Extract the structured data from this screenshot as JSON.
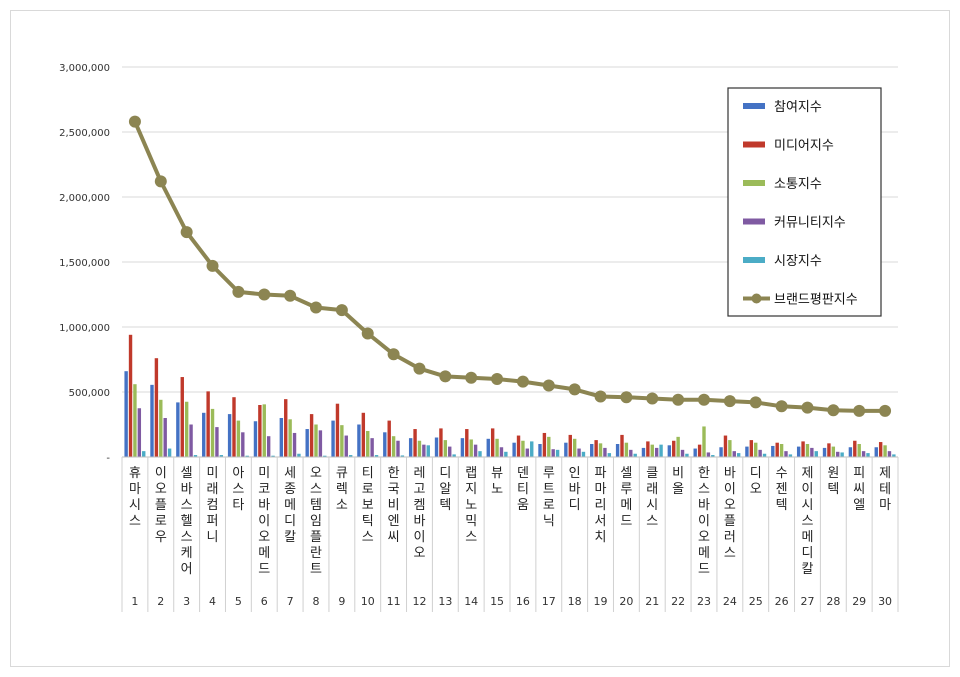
{
  "chart_data": {
    "type": "bar",
    "title": "",
    "xlabel": "",
    "ylabel": "",
    "ylim": [
      0,
      3000000
    ],
    "yticks": [
      0,
      500000,
      1000000,
      1500000,
      2000000,
      2500000,
      3000000
    ],
    "ytick_labels": [
      "-",
      "500,000",
      "1,000,000",
      "1,500,000",
      "2,000,000",
      "2,500,000",
      "3,000,000"
    ],
    "grid": true,
    "legend_position": "top-right",
    "ranks": [
      "1",
      "2",
      "3",
      "4",
      "5",
      "6",
      "7",
      "8",
      "9",
      "10",
      "11",
      "12",
      "13",
      "14",
      "15",
      "16",
      "17",
      "18",
      "19",
      "20",
      "21",
      "22",
      "23",
      "24",
      "25",
      "26",
      "27",
      "28",
      "29",
      "30"
    ],
    "categories": [
      "휴마시스",
      "이오플로우",
      "셀바스헬스케어",
      "미래컴퍼니",
      "아스타",
      "미코바이오메드",
      "세종메디칼",
      "오스템임플란트",
      "큐렉소",
      "티로보틱스",
      "한국비엔씨",
      "레고켐바이오",
      "디알텍",
      "랩지노믹스",
      "뷰노",
      "덴티움",
      "루트로닉",
      "인바디",
      "파마리서치",
      "셀루메드",
      "클래시스",
      "비올",
      "한스바이오메드",
      "바이오플러스",
      "디오",
      "수젠텍",
      "제이시스메디칼",
      "원텍",
      "피씨엘",
      "제테마"
    ],
    "series": [
      {
        "name": "참여지수",
        "color": "#4472c4",
        "values": [
          660000,
          555000,
          420000,
          340000,
          330000,
          275000,
          300000,
          215000,
          280000,
          250000,
          190000,
          145000,
          150000,
          145000,
          140000,
          110000,
          100000,
          110000,
          100000,
          100000,
          70000,
          90000,
          65000,
          75000,
          80000,
          85000,
          80000,
          70000,
          75000,
          75000
        ]
      },
      {
        "name": "미디어지수",
        "color": "#c0392b",
        "values": [
          940000,
          760000,
          615000,
          505000,
          460000,
          400000,
          445000,
          330000,
          410000,
          340000,
          280000,
          215000,
          220000,
          215000,
          220000,
          165000,
          185000,
          170000,
          130000,
          170000,
          120000,
          125000,
          95000,
          165000,
          130000,
          110000,
          120000,
          105000,
          125000,
          115000
        ]
      },
      {
        "name": "소통지수",
        "color": "#9bbb59",
        "values": [
          560000,
          440000,
          425000,
          370000,
          280000,
          405000,
          290000,
          250000,
          245000,
          200000,
          160000,
          125000,
          130000,
          135000,
          140000,
          125000,
          155000,
          140000,
          105000,
          110000,
          95000,
          155000,
          235000,
          130000,
          110000,
          100000,
          100000,
          80000,
          100000,
          90000
        ]
      },
      {
        "name": "커뮤니티지수",
        "color": "#7f5aa2",
        "values": [
          375000,
          300000,
          250000,
          230000,
          190000,
          160000,
          185000,
          205000,
          165000,
          145000,
          125000,
          95000,
          80000,
          95000,
          75000,
          65000,
          60000,
          65000,
          70000,
          55000,
          70000,
          55000,
          35000,
          45000,
          55000,
          45000,
          70000,
          40000,
          45000,
          45000
        ]
      },
      {
        "name": "시장지수",
        "color": "#4bacc6",
        "values": [
          45000,
          65000,
          15000,
          15000,
          10000,
          10000,
          25000,
          10000,
          15000,
          15000,
          12000,
          90000,
          20000,
          45000,
          40000,
          120000,
          55000,
          40000,
          30000,
          25000,
          95000,
          25000,
          15000,
          30000,
          25000,
          20000,
          45000,
          35000,
          30000,
          20000
        ]
      },
      {
        "name": "브랜드평판지수",
        "color": "#8c8552",
        "type": "line",
        "values": [
          2580000,
          2120000,
          1730000,
          1470000,
          1270000,
          1250000,
          1240000,
          1150000,
          1130000,
          950000,
          790000,
          680000,
          620000,
          610000,
          600000,
          580000,
          550000,
          520000,
          465000,
          460000,
          450000,
          440000,
          440000,
          430000,
          420000,
          390000,
          380000,
          360000,
          355000,
          355000
        ]
      }
    ]
  }
}
